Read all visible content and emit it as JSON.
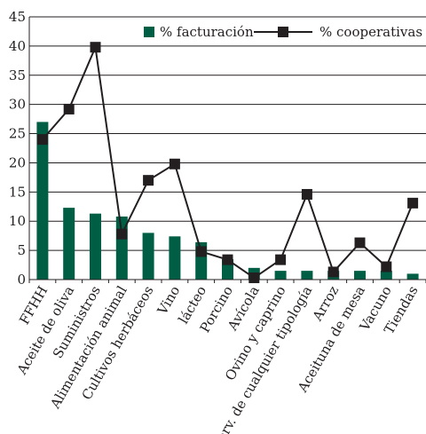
{
  "chart_data": {
    "type": "bar",
    "categories": [
      "FFHH",
      "Aceite de oliva",
      "Suministros",
      "Alimentación animal",
      "Cultivos herbáceos",
      "Vino",
      "lácteo",
      "Porcino",
      "Avícola",
      "Ovino y caprino",
      "Serv. de cualquier tipología",
      "Arroz",
      "Aceituna de mesa",
      "Vacuno",
      "Tiendas"
    ],
    "series": [
      {
        "name": "% facturación",
        "type": "bar",
        "color": "#005e45",
        "values": [
          27,
          12.3,
          11.3,
          10.8,
          8,
          7.4,
          6.4,
          3.5,
          2,
          1.5,
          1.5,
          1.5,
          1.5,
          1.5,
          1
        ]
      },
      {
        "name": "% cooperativas",
        "type": "line",
        "color": "#231f20",
        "values": [
          24,
          29.2,
          39.8,
          7.8,
          17,
          19.8,
          4.8,
          3.4,
          0.3,
          3.4,
          14.6,
          1.3,
          6.3,
          2.2,
          13.1
        ]
      }
    ],
    "ylim": [
      0,
      45
    ],
    "yticks": [
      0,
      5,
      10,
      15,
      20,
      25,
      30,
      35,
      40,
      45
    ],
    "grid": true,
    "legend": "top-right",
    "xlabel": "",
    "ylabel": "",
    "title": ""
  }
}
